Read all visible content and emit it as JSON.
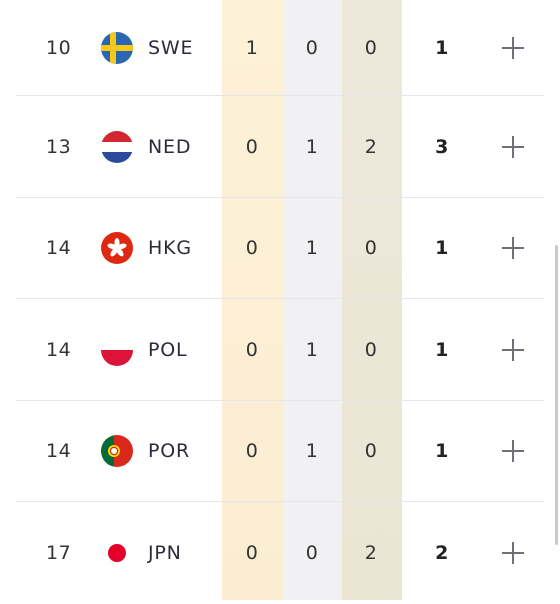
{
  "rows": [
    {
      "rank": "10",
      "flag": "sweden-flag",
      "code": "SWE",
      "gold": "1",
      "silver": "0",
      "bronze": "0",
      "total": "1"
    },
    {
      "rank": "13",
      "flag": "netherlands-flag",
      "code": "NED",
      "gold": "0",
      "silver": "1",
      "bronze": "2",
      "total": "3"
    },
    {
      "rank": "14",
      "flag": "hong-kong-flag",
      "code": "HKG",
      "gold": "0",
      "silver": "1",
      "bronze": "0",
      "total": "1"
    },
    {
      "rank": "14",
      "flag": "poland-flag",
      "code": "POL",
      "gold": "0",
      "silver": "1",
      "bronze": "0",
      "total": "1"
    },
    {
      "rank": "14",
      "flag": "portugal-flag",
      "code": "POR",
      "gold": "0",
      "silver": "1",
      "bronze": "0",
      "total": "1"
    },
    {
      "rank": "17",
      "flag": "japan-flag",
      "code": "JPN",
      "gold": "0",
      "silver": "0",
      "bronze": "2",
      "total": "2"
    }
  ],
  "colors": {
    "gold_col": "#fcefd6",
    "silver_col": "#f1f1f3",
    "bronze_col": "#ece6d7"
  }
}
